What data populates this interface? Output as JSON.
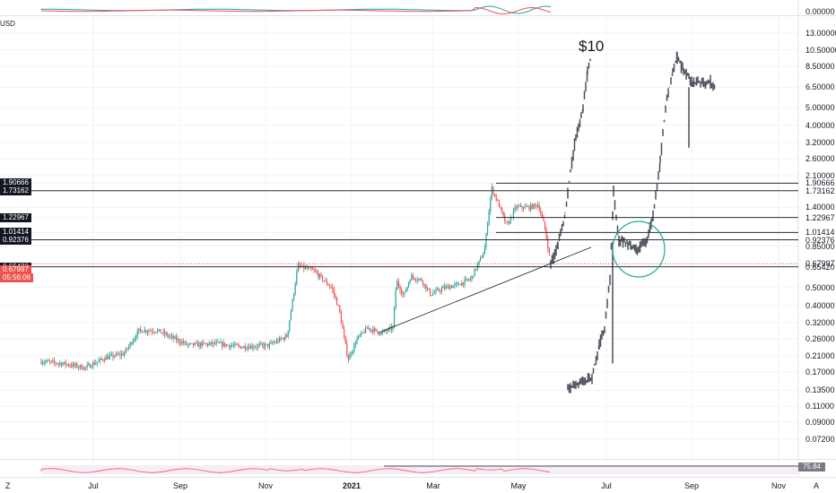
{
  "chart_data": {
    "type": "candlestick",
    "y_scale": "log",
    "y_tick_labels": [
      "13.00000",
      "10.50000",
      "8.50000",
      "6.50000",
      "5.00000",
      "4.00000",
      "3.20000",
      "2.60000",
      "2.10000",
      "1.90666",
      "1.73162",
      "1.40000",
      "1.22967",
      "1.01414",
      "0.92376",
      "0.85000",
      "0.67997",
      "0.65420",
      "0.50000",
      "0.40000",
      "0.32000",
      "0.26000",
      "0.21000",
      "0.17000",
      "0.13500",
      "0.11000",
      "0.09000",
      "0.07200"
    ],
    "y_tick_values": [
      13,
      10.5,
      8.5,
      6.5,
      5.0,
      4.0,
      3.2,
      2.6,
      2.1,
      1.90666,
      1.73162,
      1.4,
      1.22967,
      1.01414,
      0.92376,
      0.85,
      0.67997,
      0.6542,
      0.5,
      0.4,
      0.32,
      0.26,
      0.21,
      0.17,
      0.135,
      0.11,
      0.09,
      0.072
    ],
    "x_tick_labels": [
      "Jul",
      "Sep",
      "Nov",
      "2021",
      "Mar",
      "May",
      "Jul",
      "Sep",
      "Nov"
    ],
    "x_tick_bold": [
      false,
      false,
      false,
      true,
      false,
      false,
      false,
      false,
      false
    ],
    "axis_unit": "USD",
    "levels": [
      1.90666,
      1.73162,
      1.22967,
      1.01414,
      0.92376,
      0.6542
    ],
    "level_labels": [
      "1.90666",
      "1.73162",
      "1.22967",
      "1.01414",
      "0.92376",
      "0.65420"
    ],
    "current_price": "0.67997",
    "countdown": "05:56:06",
    "annotation": "$10",
    "top_pane_value": "0.00000",
    "rsi_value": "75.84",
    "corner_left": "Z",
    "corner_right": "A"
  }
}
